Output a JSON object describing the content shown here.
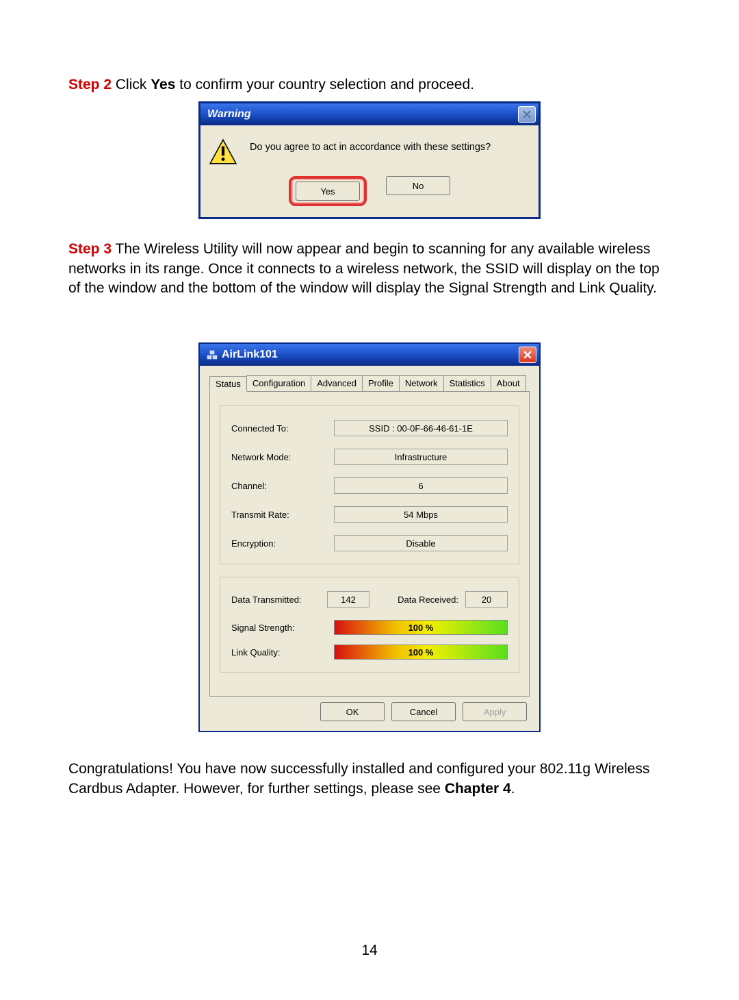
{
  "step2": {
    "label": "Step 2",
    "text_before": " Click ",
    "yes": "Yes",
    "text_after": " to confirm your country selection and proceed."
  },
  "warning_dialog": {
    "title": "Warning",
    "message": "Do you agree to act in accordance with these settings?",
    "yes": "Yes",
    "no": "No",
    "titlebar_gradient": [
      "#3b74ec",
      "#1c50c8",
      "#0a2a84"
    ],
    "body_bg": "#ece9d8",
    "highlight_color": "#e03030"
  },
  "step3": {
    "label": "Step 3",
    "text": " The Wireless Utility will now appear and begin to scanning for any available wireless networks in its range. Once it connects to a wireless network, the SSID will display on the top of the window and the bottom of the window will display the Signal Strength and Link Quality."
  },
  "airlink": {
    "title": "AirLink101",
    "tabs": [
      "Status",
      "Configuration",
      "Advanced",
      "Profile",
      "Network",
      "Statistics",
      "About"
    ],
    "active_tab": 0,
    "fields": {
      "connected_to": {
        "label": "Connected To:",
        "value": "SSID : 00-0F-66-46-61-1E"
      },
      "network_mode": {
        "label": "Network Mode:",
        "value": "Infrastructure"
      },
      "channel": {
        "label": "Channel:",
        "value": "6"
      },
      "transmit_rate": {
        "label": "Transmit Rate:",
        "value": "54 Mbps"
      },
      "encryption": {
        "label": "Encryption:",
        "value": "Disable"
      }
    },
    "data": {
      "transmitted_label": "Data Transmitted:",
      "transmitted_value": "142",
      "received_label": "Data Received:",
      "received_value": "20"
    },
    "bars": {
      "signal_label": "Signal Strength:",
      "signal_value": "100 %",
      "signal_percent": 100,
      "link_label": "Link Quality:",
      "link_value": "100 %",
      "link_percent": 100,
      "gradient": [
        "#d81010",
        "#f0c000",
        "#f0f000",
        "#58e020"
      ]
    },
    "buttons": {
      "ok": "OK",
      "cancel": "Cancel",
      "apply": "Apply"
    }
  },
  "congrats": {
    "text_before": "Congratulations! You have now successfully installed and configured your 802.11g Wireless Cardbus Adapter. However, for further settings, please see ",
    "chapter": "Chapter 4",
    "text_after": "."
  },
  "page_number": "14"
}
